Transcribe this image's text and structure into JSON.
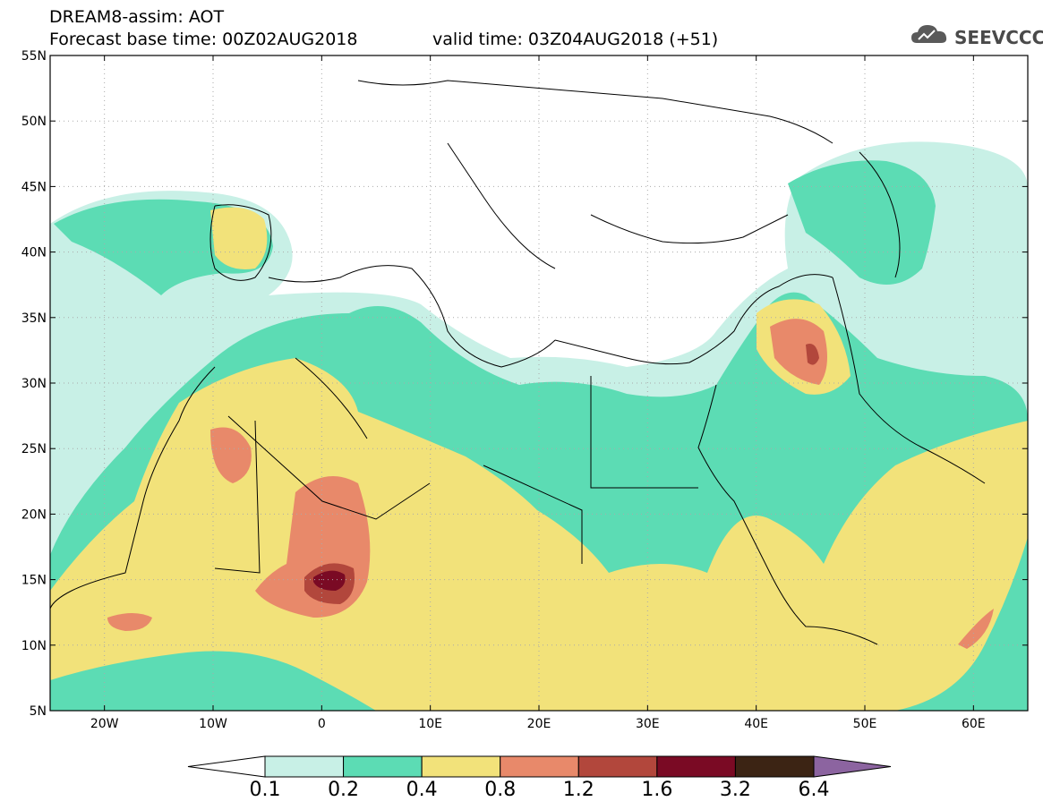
{
  "header": {
    "title": "DREAM8-assim: AOT",
    "base_time": "Forecast base time: 00Z02AUG2018",
    "valid_time": "valid time: 03Z04AUG2018 (+51)"
  },
  "logo": {
    "text": "SEEVCCC",
    "icon": "cloud-icon"
  },
  "axes": {
    "lat_labels": [
      "55N",
      "50N",
      "45N",
      "40N",
      "35N",
      "30N",
      "25N",
      "20N",
      "15N",
      "10N",
      "5N"
    ],
    "lon_labels": [
      "20W",
      "10W",
      "0",
      "10E",
      "20E",
      "30E",
      "40E",
      "50E",
      "60E"
    ],
    "lon_range": [
      -25,
      65
    ],
    "lat_range": [
      5,
      55
    ],
    "grid": "dotted"
  },
  "colorbar": {
    "levels": [
      "0.1",
      "0.2",
      "0.4",
      "0.8",
      "1.2",
      "1.6",
      "3.2",
      "6.4"
    ],
    "colors": [
      "#ffffff",
      "#c8f0e6",
      "#5cdcb4",
      "#f2e27a",
      "#e8896a",
      "#b2473c",
      "#7a0a24",
      "#3c2414",
      "#8c64a0"
    ]
  }
}
